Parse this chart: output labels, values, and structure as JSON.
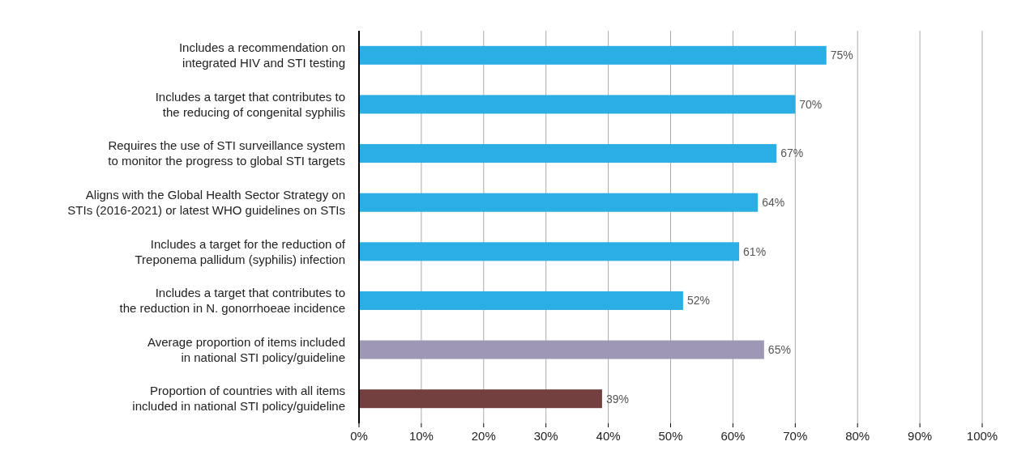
{
  "chart_data": {
    "type": "bar",
    "orientation": "horizontal",
    "categories": [
      "Includes a recommendation on integrated HIV and STI testing",
      "Includes a target that contributes to the reducing of congenital syphilis",
      "Requires the use of STI surveillance system to monitor the progress to global STI targets",
      "Aligns with the Global Health Sector Strategy on STIs (2016-2021) or latest WHO guidelines on STIs",
      "Includes a target for the reduction of Treponema pallidum (syphilis) infection",
      "Includes a target that contributes to the reduction in N. gonorrhoeae incidence",
      "Average proportion of items included in national STI policy/guideline",
      "Proportion of countries with all items included in national STI policy/guideline"
    ],
    "values": [
      75,
      70,
      67,
      64,
      61,
      52,
      65,
      39
    ],
    "colors": [
      "#2aaee4",
      "#2aaee4",
      "#2aaee4",
      "#2aaee4",
      "#2aaee4",
      "#2aaee4",
      "#9e98b4",
      "#733f3f"
    ],
    "value_labels": [
      "75%",
      "70%",
      "67%",
      "64%",
      "61%",
      "52%",
      "65%",
      "39%"
    ],
    "xlim": [
      0,
      100
    ],
    "xticks": [
      {
        "value": 0,
        "label": "0%"
      },
      {
        "value": 10,
        "label": "10%"
      },
      {
        "value": 20,
        "label": "20%"
      },
      {
        "value": 30,
        "label": "30%"
      },
      {
        "value": 40,
        "label": "40%"
      },
      {
        "value": 50,
        "label": "50%"
      },
      {
        "value": 60,
        "label": "60%"
      },
      {
        "value": 70,
        "label": "70%"
      },
      {
        "value": 80,
        "label": "80%"
      },
      {
        "value": 90,
        "label": "90%"
      },
      {
        "value": 100,
        "label": "100%"
      }
    ],
    "grid": "x"
  }
}
